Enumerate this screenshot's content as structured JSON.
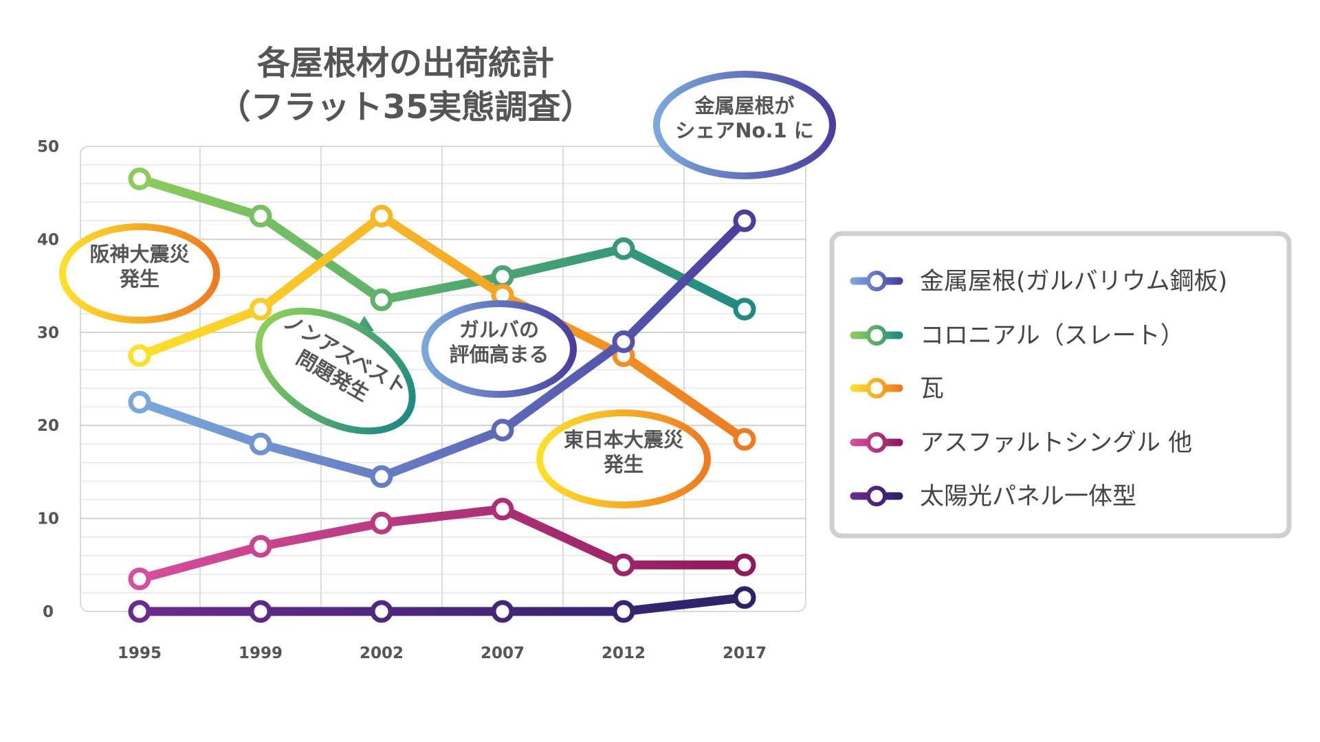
{
  "chart_data": {
    "type": "line",
    "title": [
      "各屋根材の出荷統計",
      "（フラット35実態調査）"
    ],
    "categories": [
      "1995",
      "1999",
      "2002",
      "2007",
      "2012",
      "2017"
    ],
    "ylim": [
      0,
      50
    ],
    "yticks": [
      "0",
      "10",
      "20",
      "30",
      "40",
      "50"
    ],
    "grid": true,
    "legend_position": "right",
    "series": [
      {
        "name": "金属屋根(ガルバリウム鋼板)",
        "values": [
          22.5,
          18,
          14.5,
          19.5,
          29,
          42
        ],
        "color_start": "#7aa8dc",
        "color_end": "#4a3f9e"
      },
      {
        "name": "コロニアル（スレート）",
        "values": [
          46.5,
          42.5,
          33.5,
          36,
          39,
          32.5
        ],
        "color_start": "#8ccc5a",
        "color_end": "#1f8a82"
      },
      {
        "name": "瓦",
        "values": [
          27.5,
          32.5,
          42.5,
          34,
          27.5,
          18.5
        ],
        "color_start": "#fde02b",
        "color_end": "#ee7a22"
      },
      {
        "name": "アスファルトシングル 他",
        "values": [
          3.5,
          7,
          9.5,
          11,
          5,
          5
        ],
        "color_start": "#d64e9c",
        "color_end": "#8e1a5c"
      },
      {
        "name": "太陽光パネル一体型",
        "values": [
          0,
          0,
          0,
          0,
          0,
          1.5
        ],
        "color_start": "#6b2a8e",
        "color_end": "#2a2368"
      }
    ],
    "annotations": [
      {
        "lines": [
          "阪神大震災",
          "発生"
        ]
      },
      {
        "lines": [
          "ノンアスベスト",
          "問題発生"
        ]
      },
      {
        "lines": [
          "ガルバの",
          "評価高まる"
        ]
      },
      {
        "lines": [
          "東日本大震災",
          "発生"
        ]
      },
      {
        "lines": [
          "金属屋根が",
          "シェアNo.1 に"
        ]
      }
    ]
  }
}
